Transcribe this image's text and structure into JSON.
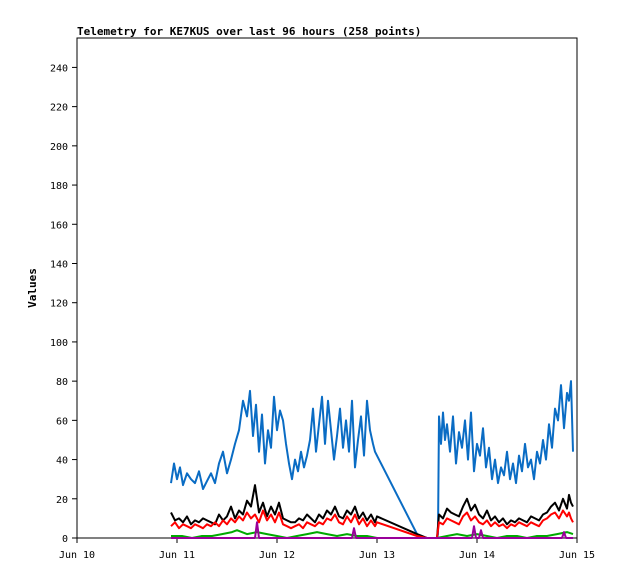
{
  "chart_data": {
    "type": "line",
    "title": "Telemetry for KE7KUS over last 96 hours (258 points)",
    "xlabel": "",
    "ylabel": "Values",
    "x_ticks": [
      "Jun 10",
      "Jun 11",
      "Jun 12",
      "Jun 13",
      "Jun 14",
      "Jun 15"
    ],
    "x_range": [
      0,
      5
    ],
    "y_ticks": [
      0,
      20,
      40,
      60,
      80,
      100,
      120,
      140,
      160,
      180,
      200,
      220,
      240
    ],
    "ylim": [
      0,
      255
    ],
    "grid": false,
    "colors": {
      "blue": "#0a6cc4",
      "black": "#000000",
      "red": "#ff0000",
      "green": "#00aa00",
      "purple": "#990099"
    },
    "series": [
      {
        "color_key": "blue",
        "x": [
          0.94,
          0.97,
          1.0,
          1.03,
          1.06,
          1.1,
          1.14,
          1.18,
          1.22,
          1.26,
          1.3,
          1.34,
          1.38,
          1.42,
          1.46,
          1.5,
          1.54,
          1.58,
          1.62,
          1.66,
          1.7,
          1.73,
          1.76,
          1.79,
          1.82,
          1.85,
          1.88,
          1.91,
          1.94,
          1.97,
          2.0,
          2.03,
          2.06,
          2.09,
          2.12,
          2.15,
          2.18,
          2.21,
          2.24,
          2.27,
          2.3,
          2.33,
          2.36,
          2.39,
          2.42,
          2.45,
          2.48,
          2.51,
          2.54,
          2.57,
          2.6,
          2.63,
          2.66,
          2.69,
          2.72,
          2.75,
          2.78,
          2.81,
          2.84,
          2.87,
          2.9,
          2.93,
          2.96,
          2.98,
          3.4,
          3.5,
          3.58,
          3.6,
          3.61,
          3.62,
          3.64,
          3.66,
          3.68,
          3.7,
          3.73,
          3.76,
          3.79,
          3.82,
          3.85,
          3.88,
          3.91,
          3.94,
          3.97,
          4.0,
          4.03,
          4.06,
          4.09,
          4.12,
          4.15,
          4.18,
          4.21,
          4.24,
          4.27,
          4.3,
          4.33,
          4.36,
          4.39,
          4.42,
          4.45,
          4.48,
          4.51,
          4.54,
          4.57,
          4.6,
          4.63,
          4.66,
          4.69,
          4.72,
          4.75,
          4.78,
          4.81,
          4.84,
          4.87,
          4.9,
          4.92,
          4.94,
          4.96
        ],
        "y": [
          28,
          38,
          30,
          36,
          27,
          33,
          30,
          28,
          34,
          25,
          29,
          33,
          28,
          38,
          44,
          33,
          40,
          48,
          55,
          70,
          62,
          75,
          52,
          68,
          44,
          63,
          38,
          55,
          46,
          72,
          55,
          65,
          60,
          48,
          38,
          30,
          40,
          34,
          44,
          36,
          42,
          50,
          66,
          44,
          58,
          72,
          48,
          70,
          55,
          40,
          52,
          66,
          46,
          60,
          44,
          70,
          36,
          50,
          62,
          42,
          70,
          55,
          48,
          44,
          2,
          0,
          0,
          0,
          2,
          62,
          48,
          64,
          50,
          58,
          44,
          62,
          38,
          54,
          46,
          60,
          40,
          64,
          34,
          48,
          42,
          56,
          36,
          46,
          30,
          40,
          28,
          36,
          32,
          44,
          30,
          38,
          28,
          42,
          34,
          48,
          36,
          40,
          30,
          44,
          38,
          50,
          40,
          58,
          46,
          66,
          60,
          78,
          56,
          74,
          70,
          80,
          44
        ]
      },
      {
        "color_key": "black",
        "x": [
          0.94,
          0.98,
          1.02,
          1.06,
          1.1,
          1.14,
          1.18,
          1.22,
          1.26,
          1.3,
          1.34,
          1.38,
          1.42,
          1.46,
          1.5,
          1.54,
          1.58,
          1.62,
          1.66,
          1.7,
          1.74,
          1.78,
          1.82,
          1.86,
          1.9,
          1.94,
          1.98,
          2.02,
          2.06,
          2.1,
          2.14,
          2.18,
          2.22,
          2.26,
          2.3,
          2.34,
          2.38,
          2.42,
          2.46,
          2.5,
          2.54,
          2.58,
          2.62,
          2.66,
          2.7,
          2.74,
          2.78,
          2.82,
          2.86,
          2.9,
          2.94,
          2.98,
          3.0,
          3.4,
          3.5,
          3.58,
          3.6,
          3.62,
          3.66,
          3.7,
          3.74,
          3.78,
          3.82,
          3.86,
          3.9,
          3.94,
          3.98,
          4.02,
          4.06,
          4.1,
          4.14,
          4.18,
          4.22,
          4.26,
          4.3,
          4.34,
          4.38,
          4.42,
          4.46,
          4.5,
          4.54,
          4.58,
          4.62,
          4.66,
          4.7,
          4.74,
          4.78,
          4.82,
          4.86,
          4.9,
          4.92,
          4.94,
          4.96
        ],
        "y": [
          13,
          9,
          10,
          8,
          11,
          7,
          9,
          8,
          10,
          9,
          8,
          7,
          12,
          9,
          11,
          16,
          10,
          14,
          12,
          19,
          16,
          27,
          13,
          18,
          11,
          16,
          12,
          18,
          10,
          9,
          8,
          8,
          10,
          9,
          12,
          10,
          8,
          12,
          10,
          14,
          12,
          16,
          11,
          10,
          14,
          12,
          16,
          10,
          13,
          9,
          12,
          8,
          11,
          2,
          0,
          0,
          0,
          12,
          10,
          15,
          13,
          12,
          11,
          16,
          20,
          14,
          17,
          12,
          10,
          14,
          9,
          11,
          8,
          10,
          7,
          9,
          8,
          10,
          9,
          8,
          11,
          10,
          9,
          12,
          13,
          16,
          18,
          14,
          20,
          15,
          22,
          18,
          16
        ]
      },
      {
        "color_key": "red",
        "x": [
          0.94,
          0.98,
          1.02,
          1.06,
          1.1,
          1.14,
          1.18,
          1.22,
          1.26,
          1.3,
          1.34,
          1.38,
          1.42,
          1.46,
          1.5,
          1.54,
          1.58,
          1.62,
          1.66,
          1.7,
          1.74,
          1.78,
          1.82,
          1.86,
          1.9,
          1.94,
          1.98,
          2.02,
          2.06,
          2.1,
          2.14,
          2.18,
          2.22,
          2.26,
          2.3,
          2.34,
          2.38,
          2.42,
          2.46,
          2.5,
          2.54,
          2.58,
          2.62,
          2.66,
          2.7,
          2.74,
          2.78,
          2.82,
          2.86,
          2.9,
          2.94,
          2.98,
          3.0,
          3.4,
          3.5,
          3.58,
          3.6,
          3.62,
          3.66,
          3.7,
          3.74,
          3.78,
          3.82,
          3.86,
          3.9,
          3.94,
          3.98,
          4.02,
          4.06,
          4.1,
          4.14,
          4.18,
          4.22,
          4.26,
          4.3,
          4.34,
          4.38,
          4.42,
          4.46,
          4.5,
          4.54,
          4.58,
          4.62,
          4.66,
          4.7,
          4.74,
          4.78,
          4.82,
          4.86,
          4.9,
          4.92,
          4.94,
          4.96
        ],
        "y": [
          6,
          8,
          5,
          7,
          6,
          5,
          7,
          6,
          5,
          7,
          6,
          8,
          6,
          9,
          7,
          10,
          8,
          11,
          9,
          13,
          10,
          12,
          8,
          14,
          9,
          12,
          8,
          13,
          7,
          6,
          5,
          6,
          7,
          5,
          8,
          7,
          6,
          8,
          7,
          10,
          9,
          12,
          8,
          7,
          11,
          8,
          12,
          7,
          10,
          6,
          9,
          6,
          8,
          1,
          0,
          0,
          0,
          8,
          7,
          10,
          9,
          8,
          7,
          11,
          13,
          9,
          11,
          8,
          7,
          9,
          6,
          8,
          6,
          7,
          5,
          7,
          6,
          8,
          7,
          6,
          8,
          7,
          6,
          9,
          10,
          12,
          13,
          10,
          14,
          11,
          13,
          10,
          8
        ]
      },
      {
        "color_key": "green",
        "x": [
          0.94,
          1.05,
          1.15,
          1.25,
          1.35,
          1.45,
          1.55,
          1.6,
          1.7,
          1.8,
          1.9,
          2.0,
          2.1,
          2.2,
          2.3,
          2.4,
          2.5,
          2.6,
          2.7,
          2.8,
          2.9,
          3.0,
          3.4,
          3.6,
          3.7,
          3.8,
          3.9,
          4.0,
          4.1,
          4.2,
          4.3,
          4.4,
          4.5,
          4.6,
          4.7,
          4.8,
          4.9,
          4.96
        ],
        "y": [
          1,
          1,
          0,
          1,
          1,
          2,
          3,
          4,
          2,
          3,
          2,
          1,
          0,
          1,
          2,
          3,
          2,
          1,
          2,
          1,
          1,
          0,
          0,
          0,
          1,
          2,
          1,
          2,
          1,
          0,
          1,
          1,
          0,
          1,
          1,
          2,
          3,
          2
        ]
      },
      {
        "color_key": "purple",
        "x": [
          0.94,
          1.2,
          1.5,
          1.78,
          1.8,
          1.82,
          1.84,
          2.0,
          2.2,
          2.5,
          2.75,
          2.77,
          2.79,
          3.0,
          3.4,
          3.6,
          3.95,
          3.97,
          3.99,
          4.02,
          4.04,
          4.06,
          4.4,
          4.6,
          4.85,
          4.87,
          4.89,
          4.96
        ],
        "y": [
          0,
          0,
          0,
          0,
          8,
          0,
          0,
          0,
          0,
          0,
          0,
          5,
          0,
          0,
          0,
          0,
          0,
          6,
          0,
          0,
          4,
          0,
          0,
          0,
          0,
          3,
          0,
          0
        ]
      }
    ]
  }
}
